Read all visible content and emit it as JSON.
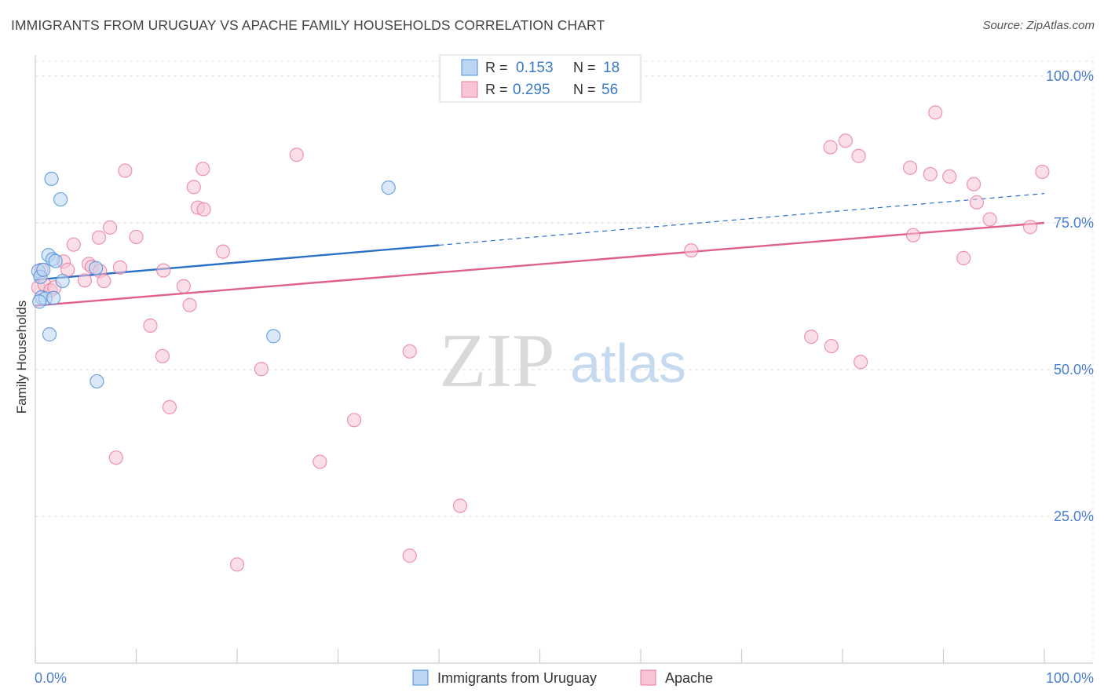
{
  "header": {
    "title": "IMMIGRANTS FROM URUGUAY VS APACHE FAMILY HOUSEHOLDS CORRELATION CHART",
    "source": "Source: ZipAtlas.com"
  },
  "watermark": {
    "zip": "ZIP",
    "atlas": "atlas"
  },
  "colors": {
    "blue": "#4a90d9",
    "blue_fill": "#bcd5f3",
    "blue_line": "#2970c8",
    "pink": "#e8799e",
    "pink_fill": "#f7c5d4",
    "pink_line": "#e0608c",
    "tick_text": "#4a7fd0"
  },
  "legend_box": {
    "rows": [
      {
        "r_label": "R = ",
        "r_value": "0.153",
        "n_label": "N = ",
        "n_value": "18"
      },
      {
        "r_label": "R = ",
        "r_value": "0.295",
        "n_label": "N = ",
        "n_value": "56"
      }
    ]
  },
  "chart_data": {
    "type": "scatter",
    "title": "IMMIGRANTS FROM URUGUAY VS APACHE FAMILY HOUSEHOLDS CORRELATION CHART",
    "xlabel": "",
    "ylabel": "Family Households",
    "xlim": [
      0,
      100
    ],
    "ylim": [
      0,
      102
    ],
    "x_tick_labels": [
      "0.0%",
      "100.0%"
    ],
    "y_ticks": [
      25,
      50,
      75,
      100
    ],
    "y_tick_labels": [
      "25.0%",
      "50.0%",
      "75.0%",
      "100.0%"
    ],
    "legend": [
      "Immigrants from Uruguay",
      "Apache"
    ],
    "series": [
      {
        "name": "Immigrants from Uruguay",
        "r": 0.153,
        "n": 18,
        "trend": {
          "x0": 0,
          "y0": 65.3,
          "x1": 40,
          "y1": 71.2,
          "dashed_to_x": 100,
          "dashed_to_y": 80.0
        },
        "points": [
          [
            0.3,
            66.8
          ],
          [
            0.5,
            65.8
          ],
          [
            0.6,
            62.3
          ],
          [
            0.8,
            67.0
          ],
          [
            1.0,
            62.1
          ],
          [
            1.3,
            69.5
          ],
          [
            1.4,
            56.0
          ],
          [
            1.6,
            82.5
          ],
          [
            1.7,
            68.8
          ],
          [
            1.8,
            62.2
          ],
          [
            2.0,
            68.5
          ],
          [
            2.5,
            79.0
          ],
          [
            2.7,
            65.1
          ],
          [
            6.0,
            67.3
          ],
          [
            6.1,
            48.0
          ],
          [
            23.6,
            55.7
          ],
          [
            35.0,
            81.0
          ],
          [
            0.4,
            61.6
          ]
        ]
      },
      {
        "name": "Apache",
        "r": 0.295,
        "n": 56,
        "trend": {
          "x0": 0,
          "y0": 60.9,
          "x1": 100,
          "y1": 75.0
        },
        "points": [
          [
            0.3,
            64.0
          ],
          [
            0.6,
            67.0
          ],
          [
            0.9,
            64.5
          ],
          [
            1.5,
            63.5
          ],
          [
            1.9,
            64.0
          ],
          [
            2.8,
            68.4
          ],
          [
            3.2,
            67.0
          ],
          [
            3.8,
            71.3
          ],
          [
            4.9,
            65.2
          ],
          [
            5.3,
            68.0
          ],
          [
            5.6,
            67.5
          ],
          [
            6.4,
            66.8
          ],
          [
            6.3,
            72.5
          ],
          [
            6.8,
            65.1
          ],
          [
            7.4,
            74.2
          ],
          [
            8.0,
            35.0
          ],
          [
            8.4,
            67.4
          ],
          [
            8.9,
            83.9
          ],
          [
            10.0,
            72.6
          ],
          [
            11.4,
            57.5
          ],
          [
            12.6,
            52.3
          ],
          [
            12.7,
            66.9
          ],
          [
            13.3,
            43.6
          ],
          [
            14.7,
            64.2
          ],
          [
            15.3,
            61.0
          ],
          [
            15.7,
            81.1
          ],
          [
            16.1,
            77.6
          ],
          [
            16.6,
            84.2
          ],
          [
            16.7,
            77.3
          ],
          [
            18.6,
            70.1
          ],
          [
            20.0,
            16.8
          ],
          [
            22.4,
            50.1
          ],
          [
            25.9,
            86.6
          ],
          [
            28.2,
            34.3
          ],
          [
            31.6,
            41.4
          ],
          [
            37.1,
            53.1
          ],
          [
            37.1,
            18.3
          ],
          [
            42.1,
            26.8
          ],
          [
            65.0,
            70.3
          ],
          [
            76.9,
            55.6
          ],
          [
            78.8,
            87.9
          ],
          [
            78.9,
            54.0
          ],
          [
            80.3,
            89.0
          ],
          [
            81.8,
            51.3
          ],
          [
            81.6,
            86.4
          ],
          [
            86.7,
            84.4
          ],
          [
            87.0,
            72.9
          ],
          [
            88.7,
            83.3
          ],
          [
            89.2,
            93.8
          ],
          [
            90.6,
            82.9
          ],
          [
            92.0,
            69.0
          ],
          [
            93.0,
            81.6
          ],
          [
            93.3,
            78.5
          ],
          [
            94.6,
            75.6
          ],
          [
            98.6,
            74.3
          ],
          [
            99.8,
            83.7
          ]
        ]
      }
    ]
  }
}
